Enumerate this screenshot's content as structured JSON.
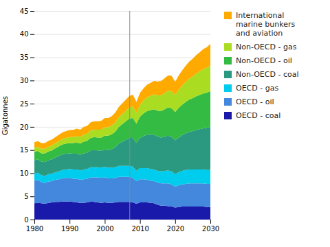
{
  "chart_data": {
    "type": "area",
    "stacked": true,
    "ylabel": "Gigatonnes",
    "x": [
      1980,
      1981,
      1982,
      1983,
      1984,
      1985,
      1986,
      1987,
      1988,
      1989,
      1990,
      1991,
      1992,
      1993,
      1994,
      1995,
      1996,
      1997,
      1998,
      1999,
      2000,
      2001,
      2002,
      2003,
      2004,
      2005,
      2006,
      2007,
      2008,
      2009,
      2010,
      2011,
      2012,
      2013,
      2014,
      2015,
      2016,
      2017,
      2018,
      2019,
      2020,
      2021,
      2022,
      2023,
      2024,
      2025,
      2026,
      2027,
      2028,
      2029,
      2030
    ],
    "series": [
      {
        "name": "OECD - coal",
        "color": "#1a1aaa",
        "values": [
          3.5,
          3.6,
          3.5,
          3.4,
          3.6,
          3.7,
          3.8,
          3.8,
          3.9,
          3.9,
          3.9,
          3.8,
          3.7,
          3.6,
          3.6,
          3.7,
          3.9,
          3.8,
          3.7,
          3.6,
          3.7,
          3.6,
          3.6,
          3.7,
          3.8,
          3.8,
          3.8,
          3.8,
          3.7,
          3.4,
          3.7,
          3.7,
          3.7,
          3.6,
          3.5,
          3.2,
          3.0,
          3.0,
          2.9,
          2.8,
          2.6,
          2.7,
          2.8,
          2.8,
          2.8,
          2.8,
          2.8,
          2.8,
          2.8,
          2.7,
          2.7
        ]
      },
      {
        "name": "OECD - oil",
        "color": "#4488dd",
        "values": [
          5.0,
          4.9,
          4.6,
          4.5,
          4.6,
          4.6,
          4.8,
          4.9,
          5.0,
          5.1,
          5.1,
          5.0,
          5.1,
          5.0,
          5.1,
          5.1,
          5.2,
          5.3,
          5.4,
          5.4,
          5.4,
          5.3,
          5.3,
          5.3,
          5.4,
          5.4,
          5.4,
          5.4,
          5.3,
          4.9,
          5.0,
          5.0,
          4.9,
          4.8,
          4.8,
          4.8,
          4.8,
          4.8,
          4.9,
          4.8,
          4.5,
          4.7,
          4.8,
          4.9,
          5.0,
          5.0,
          5.0,
          5.0,
          5.0,
          5.0,
          5.0
        ]
      },
      {
        "name": "OECD - gas",
        "color": "#00ccee",
        "values": [
          1.5,
          1.6,
          1.5,
          1.5,
          1.6,
          1.6,
          1.6,
          1.7,
          1.8,
          1.8,
          1.9,
          2.0,
          2.0,
          2.0,
          2.1,
          2.1,
          2.2,
          2.2,
          2.2,
          2.2,
          2.3,
          2.3,
          2.3,
          2.3,
          2.4,
          2.4,
          2.4,
          2.4,
          2.4,
          2.2,
          2.4,
          2.4,
          2.5,
          2.5,
          2.5,
          2.5,
          2.6,
          2.7,
          2.8,
          2.8,
          2.7,
          2.8,
          2.9,
          3.0,
          3.0,
          3.0,
          3.0,
          3.0,
          3.0,
          3.0,
          3.0
        ]
      },
      {
        "name": "Non-OECD - coal",
        "color": "#2a9980",
        "values": [
          2.8,
          2.9,
          2.9,
          3.0,
          3.0,
          3.1,
          3.2,
          3.3,
          3.4,
          3.4,
          3.4,
          3.4,
          3.4,
          3.4,
          3.5,
          3.5,
          3.6,
          3.7,
          3.6,
          3.6,
          3.7,
          3.8,
          4.0,
          4.3,
          4.8,
          5.2,
          5.6,
          6.0,
          6.2,
          6.0,
          6.5,
          6.9,
          7.2,
          7.4,
          7.5,
          7.4,
          7.3,
          7.4,
          7.5,
          7.4,
          7.3,
          7.5,
          7.7,
          7.9,
          8.1,
          8.3,
          8.5,
          8.7,
          8.9,
          9.1,
          9.3
        ]
      },
      {
        "name": "Non-OECD - oil",
        "color": "#33bb44",
        "values": [
          1.8,
          1.8,
          1.8,
          1.9,
          1.9,
          1.9,
          2.0,
          2.1,
          2.1,
          2.2,
          2.2,
          2.3,
          2.4,
          2.4,
          2.5,
          2.6,
          2.7,
          2.8,
          2.8,
          2.9,
          3.0,
          3.1,
          3.2,
          3.4,
          3.6,
          3.8,
          4.0,
          4.2,
          4.3,
          4.2,
          4.6,
          4.9,
          5.1,
          5.3,
          5.5,
          5.6,
          5.7,
          5.9,
          6.1,
          6.2,
          6.1,
          6.4,
          6.6,
          6.8,
          7.0,
          7.1,
          7.3,
          7.4,
          7.5,
          7.6,
          7.7
        ]
      },
      {
        "name": "Non-OECD - gas",
        "color": "#aadd22",
        "values": [
          0.9,
          0.9,
          1.0,
          1.0,
          1.0,
          1.1,
          1.1,
          1.1,
          1.2,
          1.2,
          1.3,
          1.3,
          1.4,
          1.4,
          1.5,
          1.5,
          1.6,
          1.6,
          1.7,
          1.7,
          1.8,
          1.8,
          1.9,
          2.0,
          2.1,
          2.2,
          2.3,
          2.4,
          2.5,
          2.4,
          2.6,
          2.8,
          3.0,
          3.1,
          3.2,
          3.3,
          3.4,
          3.5,
          3.6,
          3.7,
          3.7,
          3.9,
          4.1,
          4.3,
          4.5,
          4.7,
          4.9,
          5.1,
          5.3,
          5.4,
          5.6
        ]
      },
      {
        "name": "International\nmarine bunkers\nand aviation",
        "color": "#ffaa00",
        "values": [
          1.2,
          1.2,
          1.2,
          1.2,
          1.3,
          1.3,
          1.3,
          1.4,
          1.4,
          1.5,
          1.5,
          1.5,
          1.6,
          1.6,
          1.7,
          1.7,
          1.8,
          1.8,
          1.8,
          1.9,
          2.0,
          2.0,
          2.0,
          2.1,
          2.2,
          2.3,
          2.4,
          2.5,
          2.5,
          2.3,
          2.5,
          2.6,
          2.7,
          2.8,
          2.9,
          3.0,
          3.1,
          3.2,
          3.3,
          3.3,
          2.8,
          3.1,
          3.3,
          3.5,
          3.7,
          3.8,
          4.0,
          4.1,
          4.3,
          4.4,
          4.6
        ]
      }
    ],
    "vline": 2007,
    "xlim": [
      1980,
      2030
    ],
    "xticks": [
      1980,
      1990,
      2000,
      2010,
      2020,
      2030
    ],
    "ylim": [
      0,
      45
    ],
    "yticks": [
      0,
      5,
      10,
      15,
      20,
      25,
      30,
      35,
      40,
      45
    ],
    "grid": true,
    "legend": "right"
  }
}
